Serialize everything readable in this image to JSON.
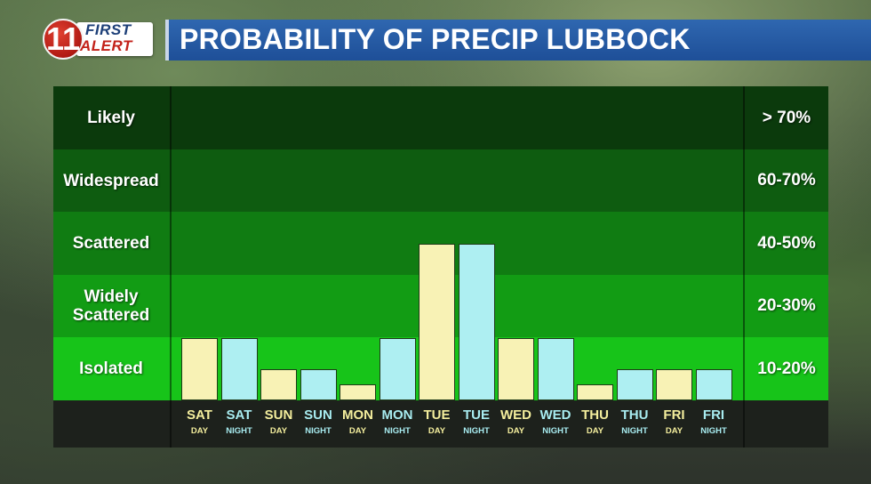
{
  "header": {
    "logo": {
      "number": "11",
      "line1": "FIRST",
      "line2": "ALERT"
    },
    "title": "PROBABILITY OF PRECIP LUBBOCK"
  },
  "colors": {
    "day_bar": "#f8f2b5",
    "night_bar": "#aeeff2",
    "day_label": "#f4ee9d",
    "night_label": "#a8ecf0",
    "bands": [
      "#0b3a0c",
      "#0e5c10",
      "#107c12",
      "#129c14",
      "#17c419"
    ]
  },
  "chart_data": {
    "type": "bar",
    "y_categories": [
      {
        "label": "Likely",
        "range": "> 70%"
      },
      {
        "label": "Widespread",
        "range": "60-70%"
      },
      {
        "label": "Scattered",
        "range": "40-50%"
      },
      {
        "label": "Widely Scattered",
        "range": "20-30%"
      },
      {
        "label": "Isolated",
        "range": "10-20%"
      }
    ],
    "categories": [
      {
        "day": "SAT",
        "period": "DAY"
      },
      {
        "day": "SAT",
        "period": "NIGHT"
      },
      {
        "day": "SUN",
        "period": "DAY"
      },
      {
        "day": "SUN",
        "period": "NIGHT"
      },
      {
        "day": "MON",
        "period": "DAY"
      },
      {
        "day": "MON",
        "period": "NIGHT"
      },
      {
        "day": "TUE",
        "period": "DAY"
      },
      {
        "day": "TUE",
        "period": "NIGHT"
      },
      {
        "day": "WED",
        "period": "DAY"
      },
      {
        "day": "WED",
        "period": "NIGHT"
      },
      {
        "day": "THU",
        "period": "DAY"
      },
      {
        "day": "THU",
        "period": "NIGHT"
      },
      {
        "day": "FRI",
        "period": "DAY"
      },
      {
        "day": "FRI",
        "period": "NIGHT"
      }
    ],
    "values": [
      20,
      20,
      10,
      10,
      5,
      20,
      50,
      50,
      20,
      20,
      5,
      10,
      10,
      10
    ],
    "units": "percent chance of precipitation",
    "ylim": [
      0,
      80
    ],
    "grid": false
  }
}
